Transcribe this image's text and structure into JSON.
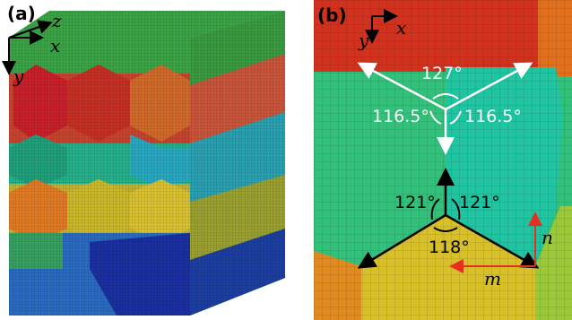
{
  "panel_a": {
    "label": "(a)",
    "axes": {
      "z": "z",
      "x": "x",
      "y": "y"
    }
  },
  "panel_b": {
    "label": "(b)",
    "axes": {
      "y": "y",
      "x": "x"
    },
    "angles": [
      "127°",
      "116.5°",
      "116.5°",
      "121°",
      "121°",
      "118°"
    ],
    "vectors": {
      "n": "n",
      "m": "m"
    }
  }
}
